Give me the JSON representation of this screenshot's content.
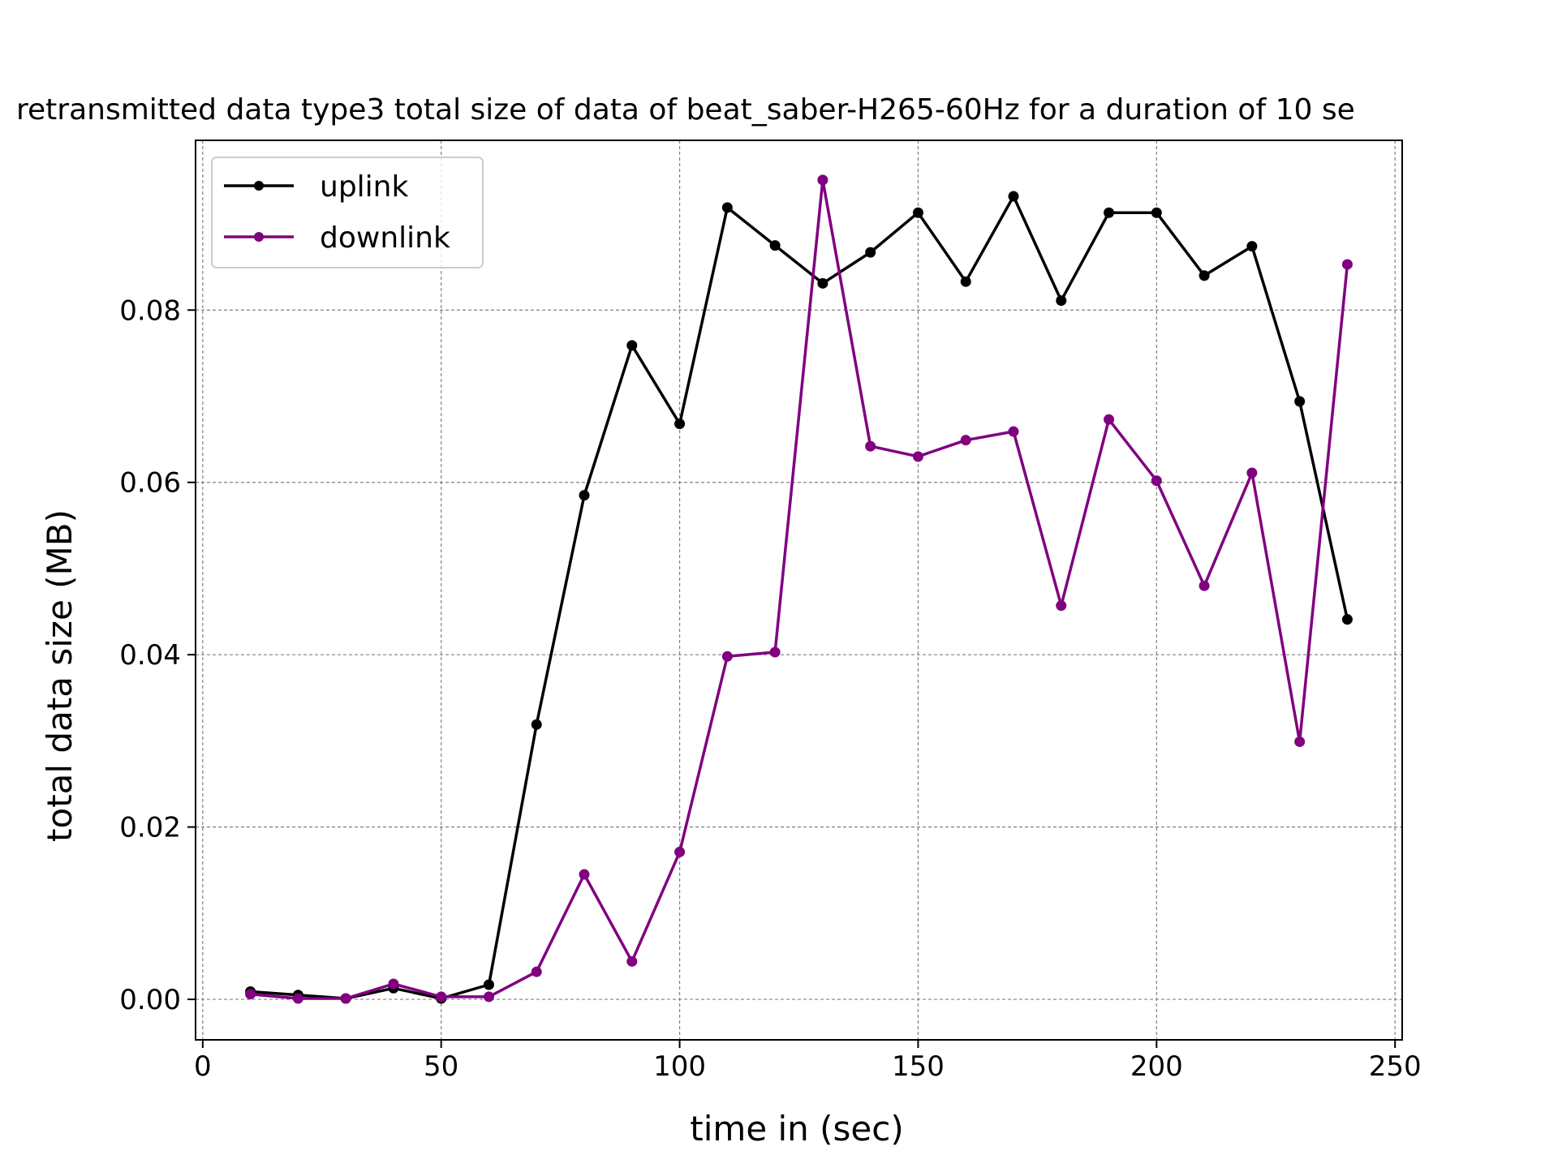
{
  "chart_data": {
    "type": "line",
    "title": "retransmitted data type3 total size of data of beat_saber-H265-60Hz for a duration of 10 se",
    "xlabel": "time in (sec)",
    "ylabel": "total data size (MB)",
    "xlim": [
      -1.5,
      251.5
    ],
    "ylim": [
      -0.0047,
      0.0997
    ],
    "xticks": [
      0,
      50,
      100,
      150,
      200,
      250
    ],
    "xtick_labels": [
      "0",
      "50",
      "100",
      "150",
      "200",
      "250"
    ],
    "yticks": [
      0.0,
      0.02,
      0.04,
      0.06,
      0.08
    ],
    "ytick_labels": [
      "0.00",
      "0.02",
      "0.04",
      "0.06",
      "0.08"
    ],
    "grid": true,
    "legend_position": "top-left",
    "x": [
      10,
      20,
      30,
      40,
      50,
      60,
      70,
      80,
      90,
      100,
      110,
      120,
      130,
      140,
      150,
      160,
      170,
      180,
      190,
      200,
      210,
      220,
      230,
      240
    ],
    "series": [
      {
        "name": "uplink",
        "color": "#000000",
        "values": [
          0.0009,
          0.0005,
          0.0001,
          0.0013,
          0.0001,
          0.0017,
          0.0319,
          0.0585,
          0.0759,
          0.0668,
          0.0919,
          0.0875,
          0.0831,
          0.0867,
          0.0913,
          0.0833,
          0.0932,
          0.0811,
          0.0913,
          0.0913,
          0.084,
          0.0874,
          0.0694,
          0.0441
        ]
      },
      {
        "name": "downlink",
        "color": "#800080",
        "values": [
          0.0006,
          0.0001,
          0.0001,
          0.0018,
          0.0003,
          0.0003,
          0.0032,
          0.0145,
          0.0044,
          0.0171,
          0.0398,
          0.0403,
          0.0951,
          0.0642,
          0.063,
          0.0649,
          0.0659,
          0.0457,
          0.0673,
          0.0602,
          0.048,
          0.0611,
          0.0299,
          0.0853
        ]
      }
    ]
  }
}
